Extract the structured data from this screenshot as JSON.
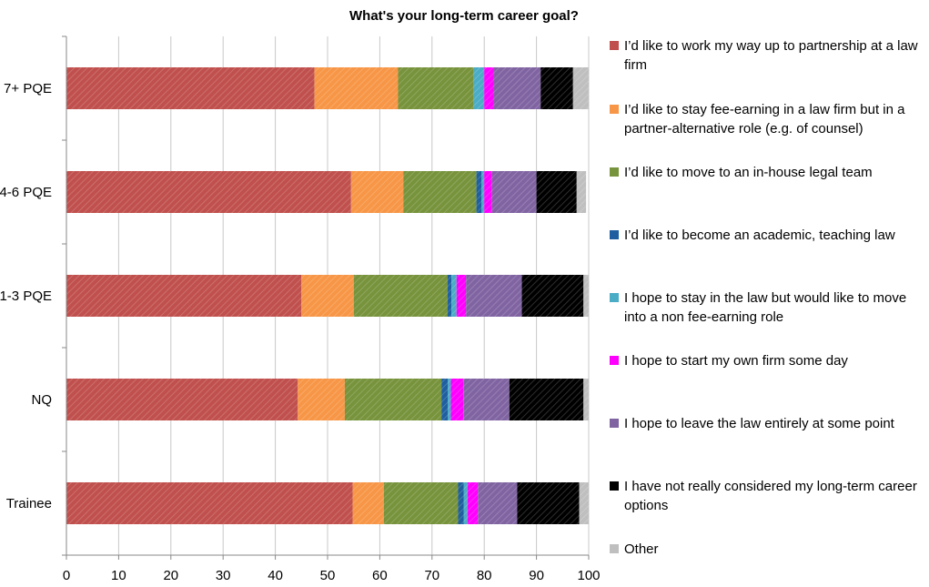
{
  "chart_data": {
    "type": "bar",
    "orientation": "horizontal",
    "stacked": true,
    "title": "What's your long-term career goal?",
    "categories": [
      "7+ PQE",
      "4-6 PQE",
      "1-3 PQE",
      "NQ",
      "Trainee"
    ],
    "xlim": [
      0,
      100
    ],
    "xticks": [
      0,
      10,
      20,
      30,
      40,
      50,
      60,
      70,
      80,
      90,
      100
    ],
    "grid": "vertical",
    "legend_position": "right",
    "series": [
      {
        "name": "I’d like to work my way up to partnership at a law firm",
        "color": "#c0504d",
        "values": [
          47.5,
          54.5,
          45,
          44.3,
          54.8
        ]
      },
      {
        "name": "I’d like to stay fee-earning in a law firm but in a partner-alternative role (e.g. of counsel)",
        "color": "#f79646",
        "values": [
          16,
          10,
          10,
          9,
          6
        ]
      },
      {
        "name": "I’d like to move to an in-house legal team",
        "color": "#77933c",
        "values": [
          14.5,
          14,
          18,
          18.5,
          14.2
        ]
      },
      {
        "name": "I’d like to become an academic, teaching law",
        "color": "#1f5f9f",
        "values": [
          0,
          1,
          0.7,
          1.2,
          1.1
        ]
      },
      {
        "name": "I hope to stay in the law but would like to move into a non fee-earning role",
        "color": "#4bacc6",
        "values": [
          2,
          0.5,
          1,
          0.6,
          0.7
        ]
      },
      {
        "name": "I hope to start my own firm some day",
        "color": "#ff00ff",
        "values": [
          1.8,
          1.5,
          1.8,
          2.4,
          2
        ]
      },
      {
        "name": "I hope to leave the law entirely at some point",
        "color": "#8064a2",
        "values": [
          9,
          8.5,
          10.7,
          8.8,
          7.5
        ]
      },
      {
        "name": "I have not really considered my long-term career options",
        "color": "#000000",
        "values": [
          6.2,
          7.7,
          11.8,
          14.2,
          11.9
        ]
      },
      {
        "name": "Other",
        "color": "#bfbfbf",
        "values": [
          3,
          1.8,
          1,
          1,
          1.8
        ]
      }
    ]
  }
}
